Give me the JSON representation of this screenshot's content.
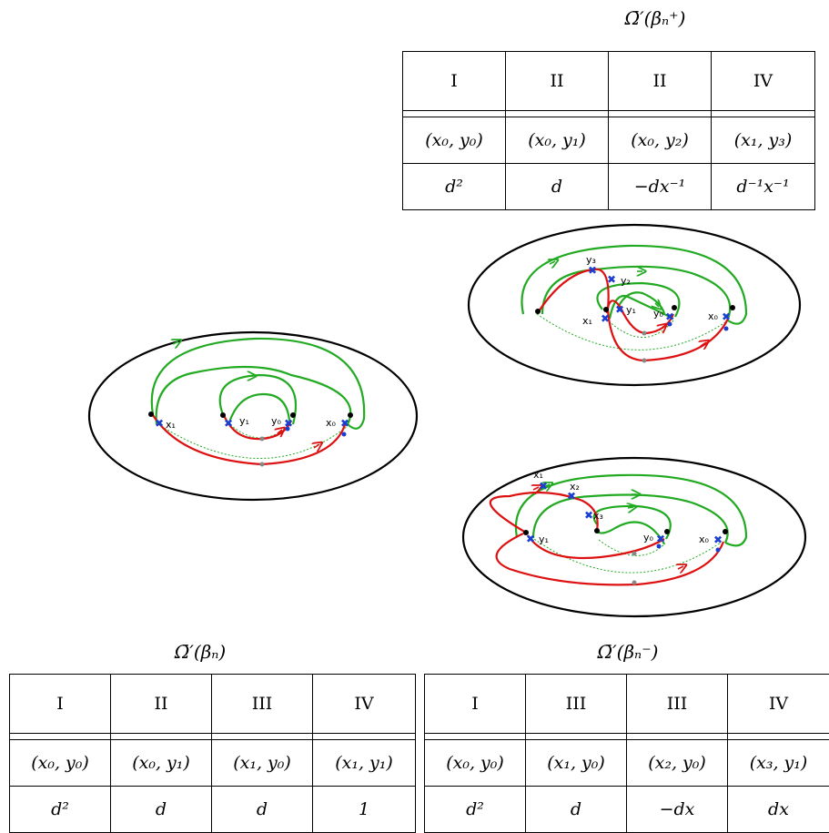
{
  "top": {
    "caption": "Ω̄′(βₙ⁺)",
    "headers": [
      "I",
      "II",
      "II",
      "IV"
    ],
    "pairs": [
      "(x₀, y₀)",
      "(x₀, y₁)",
      "(x₀, y₂)",
      "(x₁, y₃)"
    ],
    "values": [
      "d²",
      "d",
      "−dx⁻¹",
      "d⁻¹x⁻¹"
    ]
  },
  "bottom_left": {
    "caption": "Ω̄′(βₙ)",
    "headers": [
      "I",
      "II",
      "III",
      "IV"
    ],
    "pairs": [
      "(x₀, y₀)",
      "(x₀, y₁)",
      "(x₁, y₀)",
      "(x₁, y₁)"
    ],
    "values": [
      "d²",
      "d",
      "d",
      "1"
    ]
  },
  "bottom_right": {
    "caption": "Ω̄′(βₙ⁻)",
    "headers": [
      "I",
      "III",
      "III",
      "IV"
    ],
    "pairs": [
      "(x₀, y₀)",
      "(x₁, y₀)",
      "(x₂, y₀)",
      "(x₃, y₁)"
    ],
    "values": [
      "d²",
      "d",
      "−dx",
      "dx"
    ]
  },
  "diagram_left": {
    "labels": [
      "x₁",
      "y₁",
      "y₀",
      "x₀"
    ]
  },
  "diagram_top": {
    "labels": [
      "y₃",
      "y₂",
      "y₁",
      "x₁",
      "y₀",
      "x₀"
    ]
  },
  "diagram_bottom": {
    "labels": [
      "x₁",
      "x₂",
      "x₃",
      "y₁",
      "y₀",
      "x₀"
    ]
  },
  "colors": {
    "green": "#22aa22",
    "red": "#dd1111",
    "blue": "#1a3fd0"
  }
}
